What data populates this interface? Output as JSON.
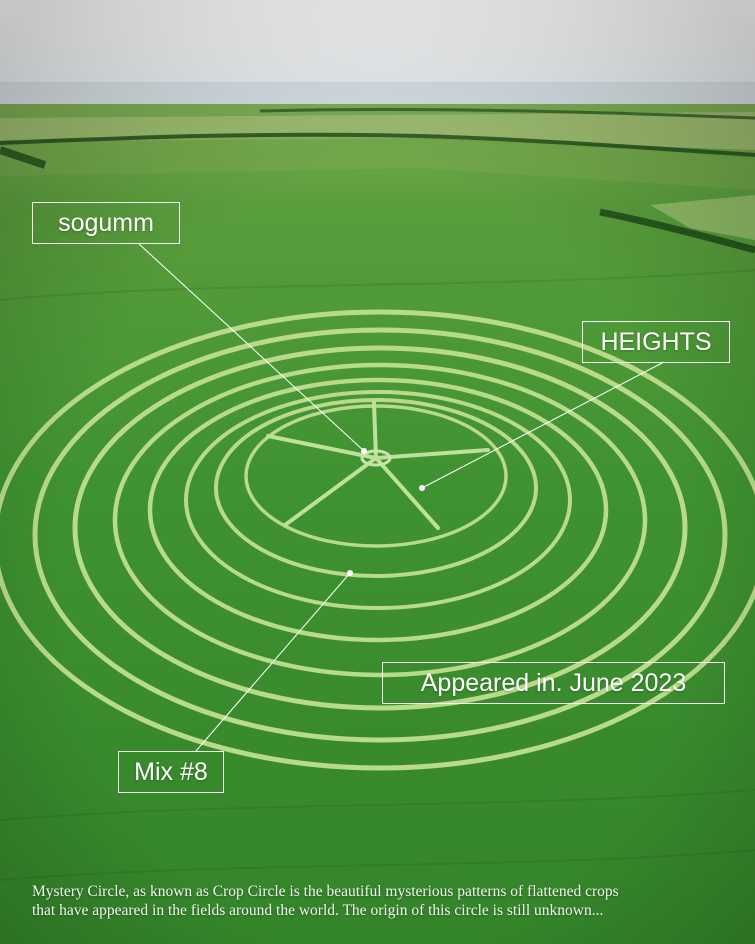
{
  "labels": {
    "top_left": "sogumm",
    "right": "HEIGHTS",
    "date": "Appeared in. June 2023",
    "bottom_left": "Mix #8"
  },
  "caption": {
    "line1": "Mystery Circle, as known as Crop Circle is the beautiful mysterious patterns of flattened crops",
    "line2": "that have appeared in the fields around the world. The origin of this circle is still unknown..."
  },
  "colors": {
    "sky": "#e9eef2",
    "field": "#3f8f2c",
    "path": "#b7d887",
    "label_text": "#ffffff"
  }
}
